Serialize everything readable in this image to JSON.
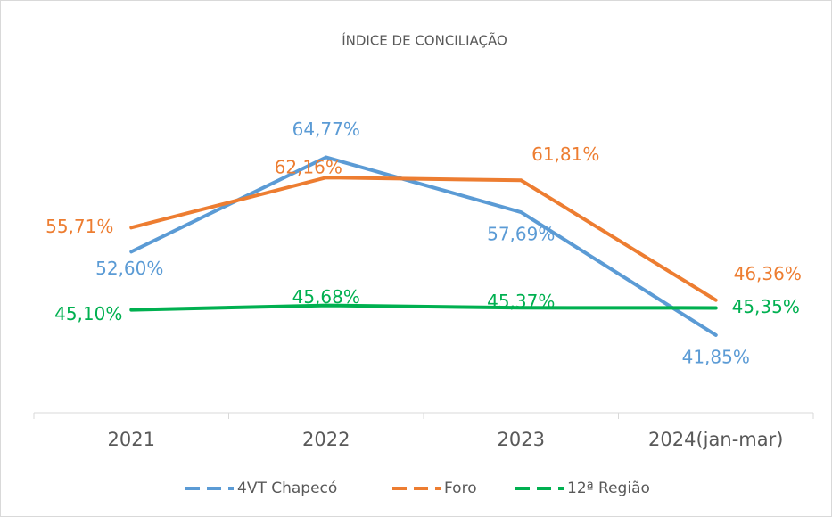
{
  "chart_data": {
    "type": "line",
    "title": "ÍNDICE DE CONCILIAÇÃO",
    "categories": [
      "2021",
      "2022",
      "2023",
      "2024(jan-mar)"
    ],
    "series": [
      {
        "name": "4VT Chapecó",
        "color": "#5b9bd5",
        "values": [
          52.6,
          64.77,
          57.69,
          41.85
        ],
        "value_labels": [
          "52,60%",
          "64,77%",
          "57,69%",
          "41,85%"
        ]
      },
      {
        "name": "Foro",
        "color": "#ed7d31",
        "values": [
          55.71,
          62.16,
          61.81,
          46.36
        ],
        "value_labels": [
          "55,71%",
          "62,16%",
          "61,81%",
          "46,36%"
        ]
      },
      {
        "name": "12ª Região",
        "color": "#00b050",
        "values": [
          45.1,
          45.68,
          45.37,
          45.35
        ],
        "value_labels": [
          "45,10%",
          "45,68%",
          "45,37%",
          "45,35%"
        ]
      }
    ]
  }
}
